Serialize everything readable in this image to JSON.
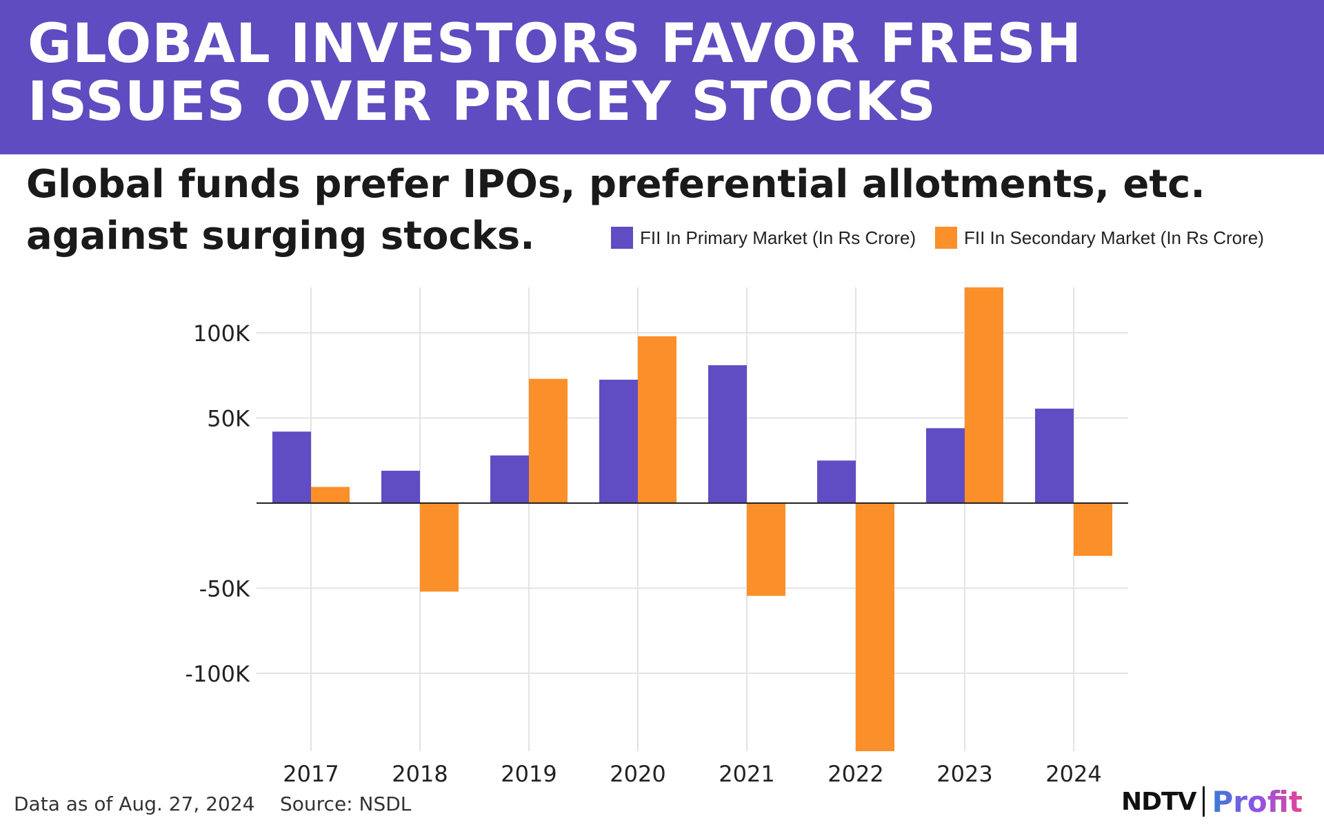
{
  "header": {
    "title_line1": "GLOBAL INVESTORS FAVOR FRESH",
    "title_line2": "ISSUES OVER PRICEY STOCKS",
    "subtitle_line1": "Global funds prefer IPOs, preferential allotments, etc.",
    "subtitle_line2": "against surging stocks."
  },
  "colors": {
    "header_bg": "#5e4cc0",
    "primary": "#604dc3",
    "secondary": "#fb8f29",
    "grid": "#e3e3e3",
    "axis": "#222222"
  },
  "chart_data": {
    "type": "bar",
    "title": "GLOBAL INVESTORS FAVOR FRESH ISSUES OVER PRICEY STOCKS",
    "subtitle": "Global funds prefer IPOs, preferential allotments, etc. against surging stocks.",
    "categories": [
      "2017",
      "2018",
      "2019",
      "2020",
      "2021",
      "2022",
      "2023",
      "2024"
    ],
    "series": [
      {
        "name": "FII In Primary Market (In Rs Crore)",
        "values": [
          42000,
          19000,
          28000,
          72500,
          81000,
          25000,
          44000,
          55500
        ]
      },
      {
        "name": "FII In Secondary Market (In Rs Crore)",
        "values": [
          9500,
          -52000,
          73000,
          98000,
          -54500,
          -146000,
          128000,
          -31000
        ]
      }
    ],
    "yticks": [
      100000,
      50000,
      -50000,
      -100000
    ],
    "ytick_labels": [
      "100K",
      "50K",
      "-50K",
      "-100K"
    ],
    "ylim": [
      -145000,
      127000
    ],
    "xlabel": "",
    "ylabel": "",
    "grid": true,
    "legend_position": "top-right"
  },
  "footer": {
    "data_note": "Data as of Aug. 27, 2024",
    "source": "Source: NSDL",
    "logo_brand": "NDTV",
    "logo_product": "Profit"
  }
}
